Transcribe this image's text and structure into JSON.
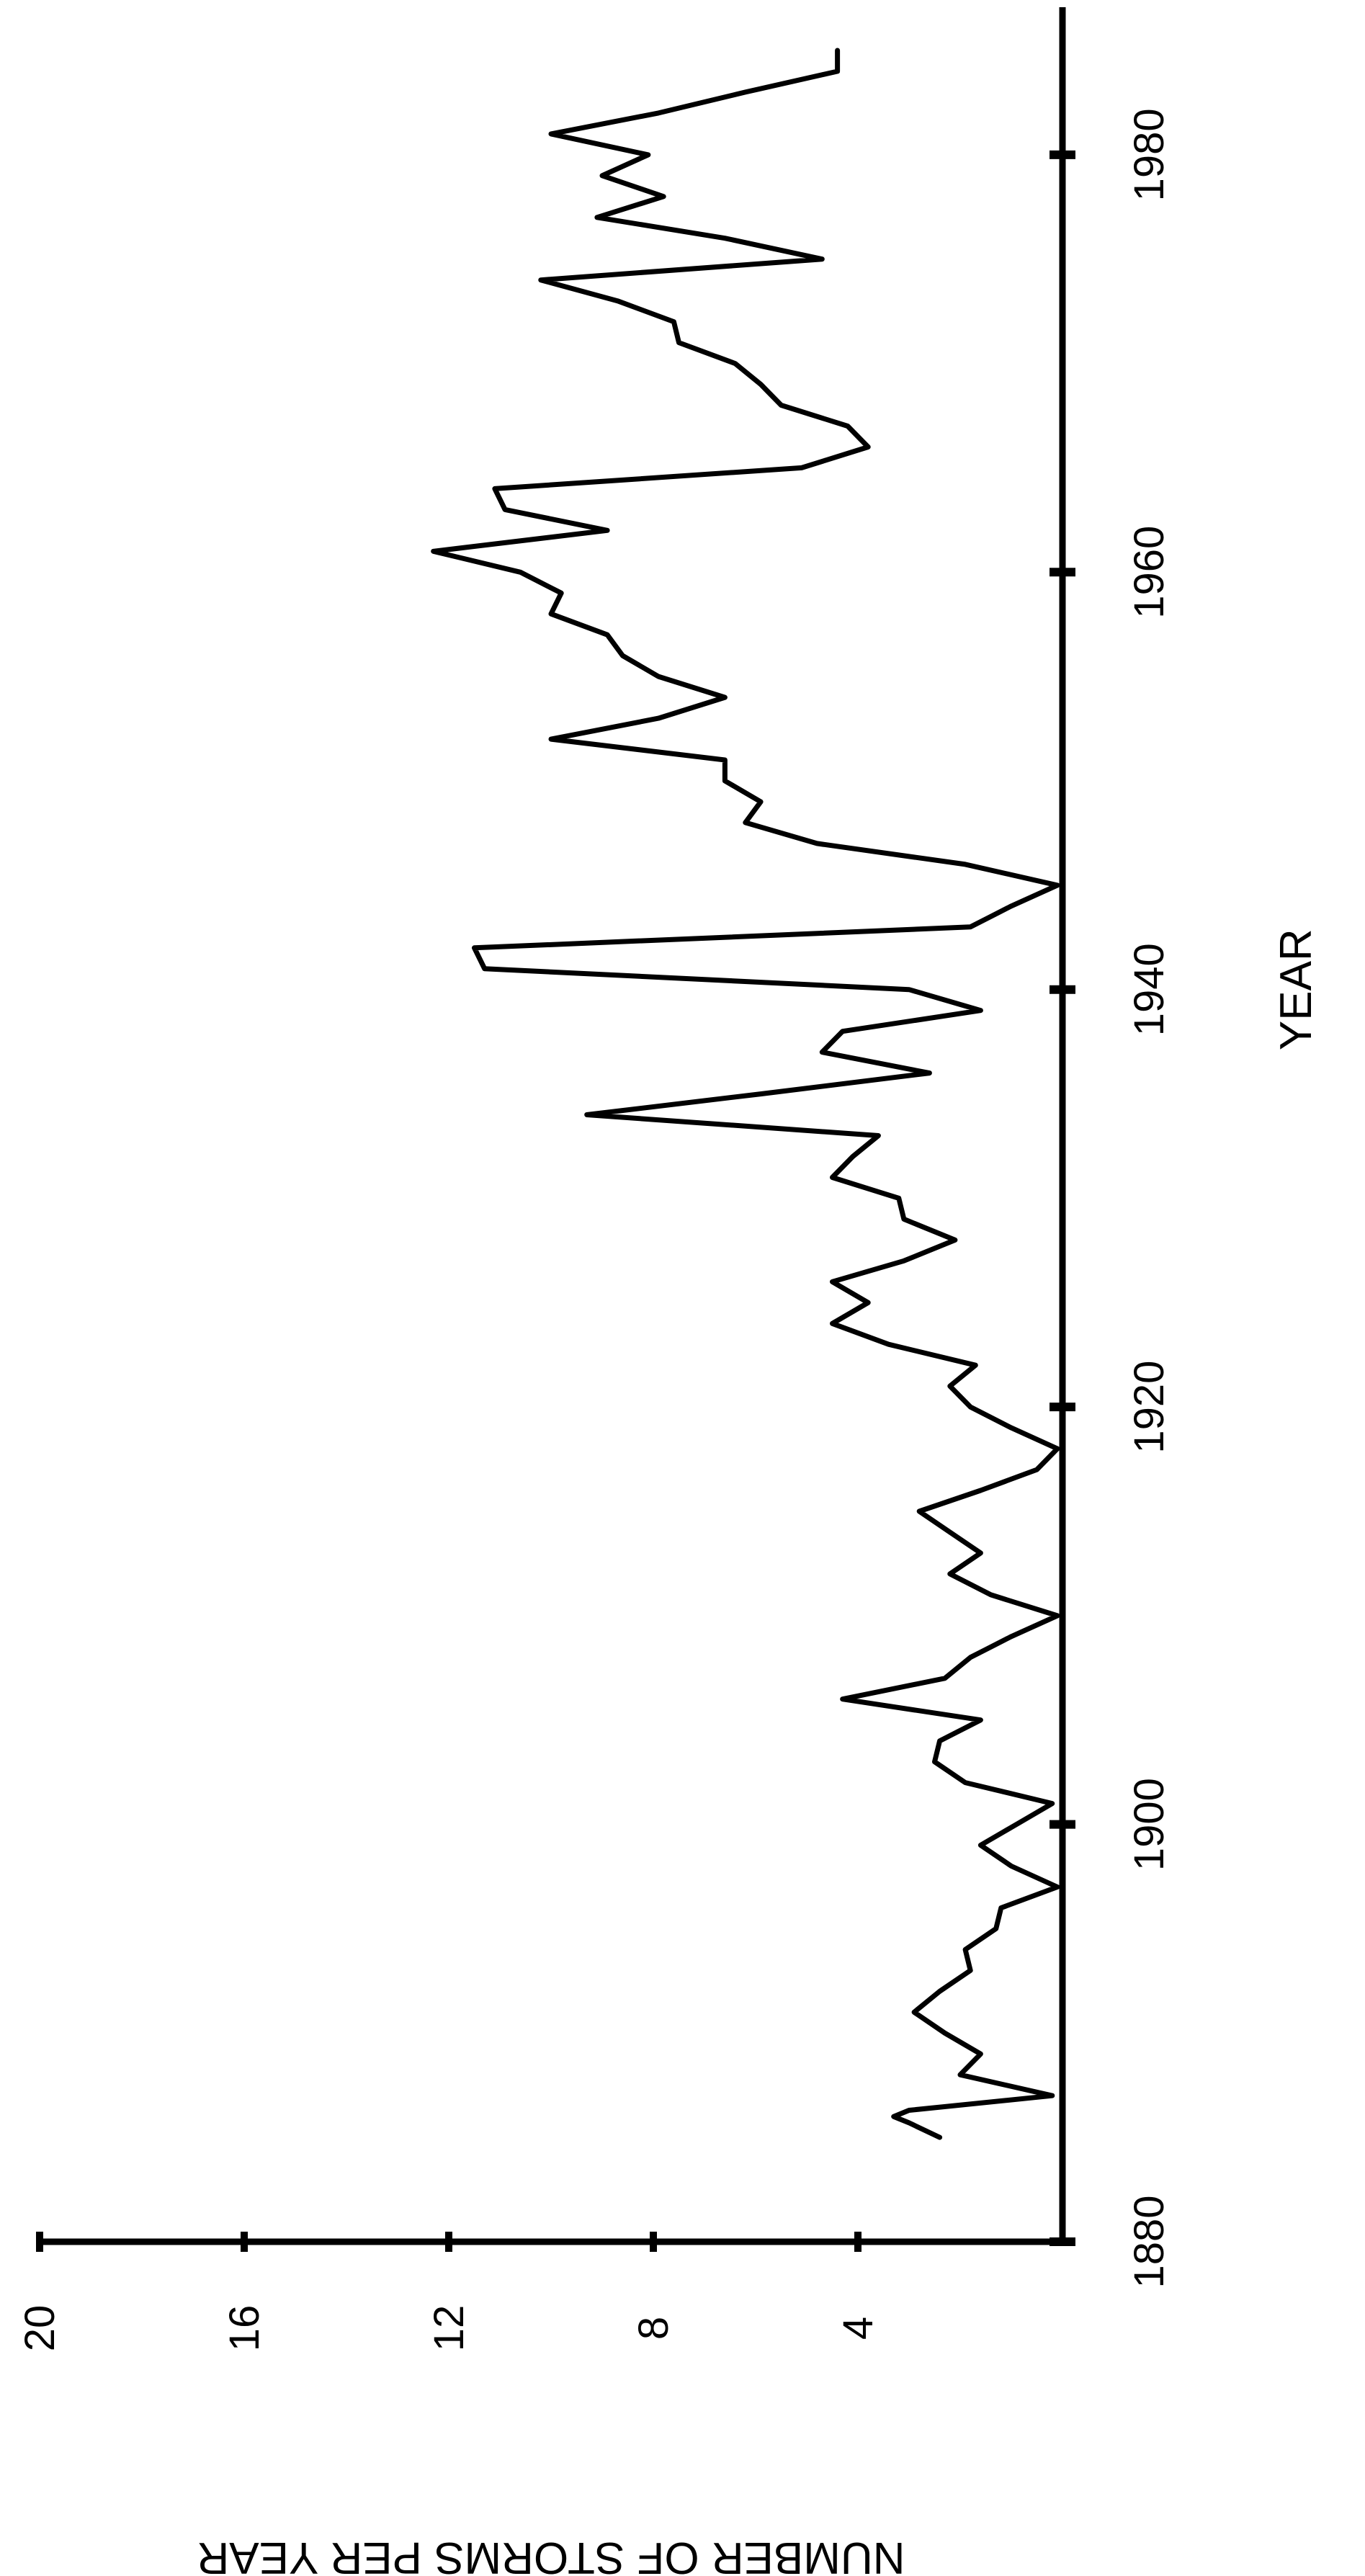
{
  "colors": {
    "ink": "#000000",
    "background": "#ffffff"
  },
  "chart_data": {
    "type": "line",
    "title": "",
    "xlabel": "YEAR",
    "ylabel": "NUMBER OF STORMS PER YEAR",
    "xlim": [
      1880,
      1985
    ],
    "ylim": [
      0,
      20
    ],
    "x_ticks": [
      1880,
      1900,
      1920,
      1940,
      1960,
      1980
    ],
    "x_tick_labels": [
      "1880",
      "1900",
      "1920",
      "1940",
      "1960",
      "1980"
    ],
    "y_ticks": [
      4,
      8,
      12,
      16,
      20
    ],
    "y_tick_labels": [
      "4",
      "8",
      "12",
      "16",
      "20"
    ],
    "grid": false,
    "legend": "none",
    "orientation": "rotated-90-clockwise",
    "series": [
      {
        "x": [
          1885.0,
          1885.7,
          1886.0,
          1886.3,
          1887.0,
          1888.0,
          1889.0,
          1890.0,
          1891.0,
          1892.0,
          1893.0,
          1894.0,
          1895.0,
          1896.0,
          1897.0,
          1898.0,
          1899.0,
          1900.0,
          1901.0,
          1902.0,
          1903.0,
          1904.0,
          1905.0,
          1906.0,
          1907.0,
          1908.0,
          1909.0,
          1910.0,
          1911.0,
          1912.0,
          1913.0,
          1914.0,
          1915.0,
          1916.0,
          1917.0,
          1918.0,
          1919.0,
          1920.0,
          1921.0,
          1922.0,
          1923.0,
          1924.0,
          1925.0,
          1926.0,
          1927.0,
          1928.0,
          1929.0,
          1930.0,
          1931.0,
          1932.0,
          1933.0,
          1934.0,
          1935.0,
          1936.0,
          1937.0,
          1938.0,
          1939.0,
          1940.0,
          1941.0,
          1942.0,
          1943.0,
          1944.0,
          1945.0,
          1946.0,
          1947.0,
          1948.0,
          1949.0,
          1950.0,
          1951.0,
          1952.0,
          1953.0,
          1954.0,
          1955.0,
          1956.0,
          1957.0,
          1958.0,
          1959.0,
          1960.0,
          1961.0,
          1962.0,
          1963.0,
          1964.0,
          1965.0,
          1966.0,
          1967.0,
          1968.0,
          1969.0,
          1970.0,
          1971.0,
          1972.0,
          1973.0,
          1974.0,
          1975.0,
          1976.0,
          1977.0,
          1978.0,
          1979.0,
          1980.0,
          1981.0,
          1982.0,
          1983.0,
          1984.0,
          1985.0
        ],
        "values": [
          2.4,
          3.0,
          3.3,
          3.0,
          0.2,
          2.0,
          1.6,
          2.3,
          2.9,
          2.4,
          1.8,
          1.9,
          1.3,
          1.2,
          0.1,
          1.0,
          1.6,
          0.9,
          0.2,
          1.9,
          2.5,
          2.4,
          1.6,
          4.3,
          2.3,
          1.8,
          1.0,
          0.1,
          1.4,
          2.2,
          1.6,
          2.2,
          2.8,
          1.6,
          0.5,
          0.1,
          1.0,
          1.8,
          2.2,
          1.7,
          3.4,
          4.5,
          3.8,
          4.5,
          3.1,
          2.1,
          3.1,
          3.2,
          4.5,
          4.1,
          3.6,
          9.3,
          5.9,
          2.6,
          4.7,
          4.3,
          1.6,
          3.0,
          11.3,
          11.5,
          1.8,
          1.0,
          0.1,
          1.9,
          4.8,
          6.2,
          5.9,
          6.6,
          6.6,
          10.0,
          7.9,
          6.6,
          7.9,
          8.6,
          8.9,
          10.0,
          9.8,
          10.6,
          12.3,
          8.9,
          10.9,
          11.1,
          5.1,
          3.8,
          4.2,
          5.5,
          5.9,
          6.4,
          7.5,
          7.6,
          8.7,
          10.2,
          4.7,
          6.6,
          9.1,
          7.8,
          9.0,
          8.1,
          10.0,
          7.9,
          6.2,
          4.4,
          4.4
        ]
      }
    ]
  }
}
